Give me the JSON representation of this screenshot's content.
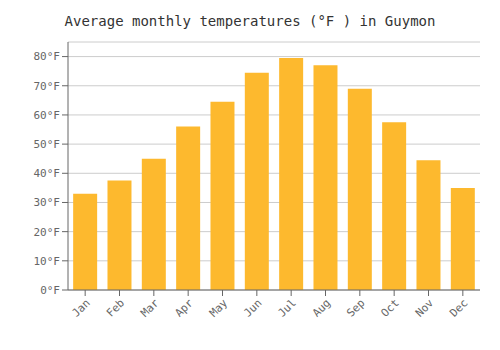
{
  "chart_data": {
    "type": "bar",
    "title": "Average monthly temperatures (°F ) in Guymon",
    "categories": [
      "Jan",
      "Feb",
      "Mar",
      "Apr",
      "May",
      "Jun",
      "Jul",
      "Aug",
      "Sep",
      "Oct",
      "Nov",
      "Dec"
    ],
    "values": [
      33,
      37.5,
      45,
      56,
      64.5,
      74.5,
      79.5,
      77,
      69,
      57.5,
      44.5,
      35
    ],
    "color": "#FDB92E",
    "ylim": [
      0,
      85
    ],
    "yticks": [
      {
        "value": 0,
        "label": "0°F"
      },
      {
        "value": 10,
        "label": "10°F"
      },
      {
        "value": 20,
        "label": "20°F"
      },
      {
        "value": 30,
        "label": "30°F"
      },
      {
        "value": 40,
        "label": "40°F"
      },
      {
        "value": 50,
        "label": "50°F"
      },
      {
        "value": 60,
        "label": "60°F"
      },
      {
        "value": 70,
        "label": "70°F"
      },
      {
        "value": 80,
        "label": "80°F"
      }
    ],
    "grid": true
  }
}
